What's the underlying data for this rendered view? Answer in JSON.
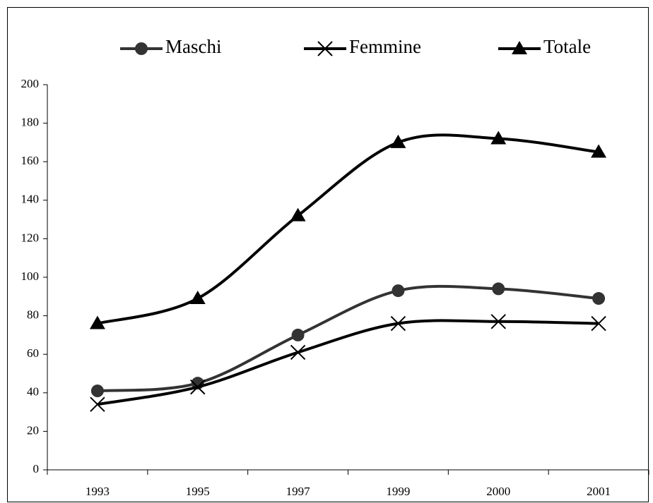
{
  "chart_data": {
    "type": "line",
    "smooth": true,
    "categories": [
      "1993",
      "1995",
      "1997",
      "1999",
      "2000",
      "2001"
    ],
    "series": [
      {
        "name": "Maschi",
        "color": "#333333",
        "marker": "circle",
        "values": [
          41,
          45,
          70,
          93,
          94,
          89
        ]
      },
      {
        "name": "Femmine",
        "color": "#000000",
        "marker": "x",
        "values": [
          34,
          43,
          61,
          76,
          77,
          76
        ]
      },
      {
        "name": "Totale",
        "color": "#000000",
        "marker": "triangle",
        "values": [
          76,
          89,
          132,
          170,
          172,
          165
        ]
      }
    ],
    "ylim": [
      0,
      200
    ],
    "yticks": [
      0,
      20,
      40,
      60,
      80,
      100,
      120,
      140,
      160,
      180,
      200
    ],
    "legend": "top"
  }
}
